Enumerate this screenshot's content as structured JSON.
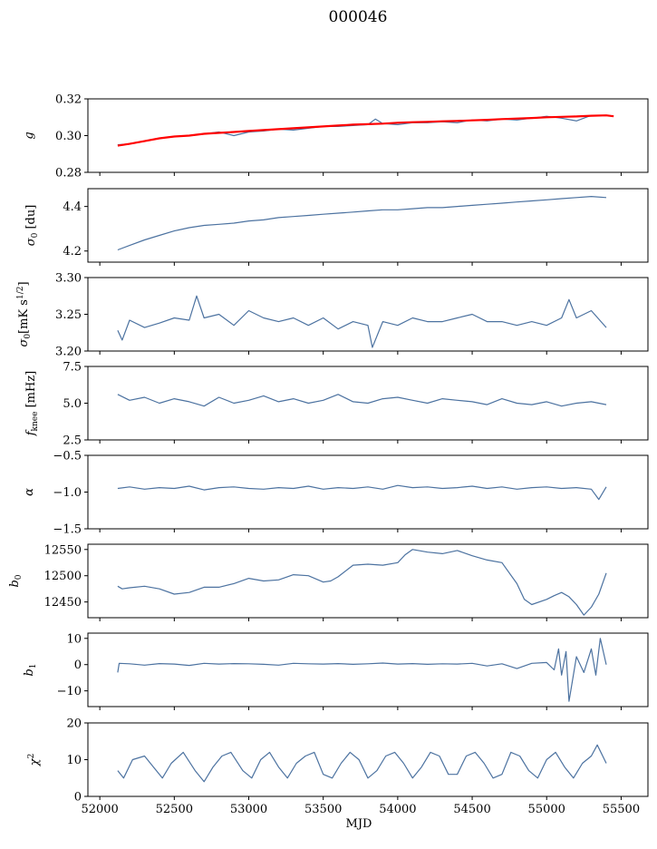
{
  "figure": {
    "title": "000046"
  },
  "chart_data": [
    {
      "type": "line",
      "ylabel": "g",
      "ylim": [
        0.28,
        0.32
      ],
      "yticks": [
        "0.28",
        "0.30",
        "0.32"
      ],
      "xlim": [
        51920,
        55680
      ],
      "series": [
        {
          "color": "#4c72a0",
          "x": [
            52120,
            52200,
            52300,
            52400,
            52500,
            52600,
            52700,
            52800,
            52900,
            53000,
            53100,
            53200,
            53300,
            53400,
            53500,
            53600,
            53700,
            53800,
            53850,
            53900,
            54000,
            54100,
            54200,
            54300,
            54400,
            54500,
            54600,
            54700,
            54800,
            54900,
            55000,
            55100,
            55200,
            55300,
            55400
          ],
          "y": [
            0.295,
            0.2955,
            0.297,
            0.2985,
            0.2995,
            0.3,
            0.301,
            0.302,
            0.3,
            0.302,
            0.3025,
            0.3035,
            0.303,
            0.304,
            0.305,
            0.305,
            0.3055,
            0.306,
            0.309,
            0.3065,
            0.306,
            0.307,
            0.307,
            0.3075,
            0.307,
            0.3085,
            0.308,
            0.309,
            0.3085,
            0.3095,
            0.3105,
            0.3095,
            0.308,
            0.311,
            0.311
          ]
        },
        {
          "color": "#ff0000",
          "x": [
            52120,
            52200,
            52300,
            52400,
            52500,
            52600,
            52700,
            52800,
            52900,
            53000,
            53100,
            53200,
            53300,
            53400,
            53500,
            53600,
            53700,
            53800,
            53900,
            54000,
            54100,
            54200,
            54300,
            54400,
            54500,
            54600,
            54700,
            54800,
            54900,
            55000,
            55100,
            55200,
            55300,
            55400,
            55450
          ],
          "y": [
            0.2945,
            0.2955,
            0.297,
            0.2985,
            0.2995,
            0.3,
            0.301,
            0.3015,
            0.302,
            0.3025,
            0.303,
            0.3035,
            0.304,
            0.3045,
            0.305,
            0.3055,
            0.306,
            0.3062,
            0.3065,
            0.307,
            0.3073,
            0.3075,
            0.3078,
            0.308,
            0.3083,
            0.3086,
            0.309,
            0.3093,
            0.3096,
            0.31,
            0.3102,
            0.3104,
            0.3108,
            0.311,
            0.3105
          ]
        }
      ]
    },
    {
      "type": "line",
      "ylabel": "σ0 [du]",
      "ylim": [
        4.15,
        4.48
      ],
      "yticks": [
        "4.2",
        "4.4"
      ],
      "xlim": [
        51920,
        55680
      ],
      "series": [
        {
          "color": "#4c72a0",
          "x": [
            52120,
            52200,
            52300,
            52400,
            52500,
            52600,
            52700,
            52800,
            52900,
            53000,
            53100,
            53200,
            53300,
            53400,
            53500,
            53600,
            53700,
            53800,
            53900,
            54000,
            54100,
            54200,
            54300,
            54400,
            54500,
            54600,
            54700,
            54800,
            54900,
            55000,
            55100,
            55200,
            55300,
            55400
          ],
          "y": [
            4.205,
            4.225,
            4.25,
            4.27,
            4.29,
            4.305,
            4.315,
            4.32,
            4.325,
            4.335,
            4.34,
            4.35,
            4.355,
            4.36,
            4.365,
            4.37,
            4.375,
            4.38,
            4.385,
            4.385,
            4.39,
            4.395,
            4.395,
            4.4,
            4.405,
            4.41,
            4.415,
            4.42,
            4.425,
            4.43,
            4.435,
            4.44,
            4.445,
            4.44
          ]
        }
      ]
    },
    {
      "type": "line",
      "ylabel": "σ0[mK s^1/2]",
      "ylim": [
        3.2,
        3.3
      ],
      "yticks": [
        "3.20",
        "3.25",
        "3.30"
      ],
      "xlim": [
        51920,
        55680
      ],
      "series": [
        {
          "color": "#4c72a0",
          "x": [
            52120,
            52150,
            52200,
            52300,
            52400,
            52500,
            52600,
            52650,
            52700,
            52800,
            52900,
            53000,
            53100,
            53200,
            53300,
            53400,
            53500,
            53600,
            53700,
            53800,
            53830,
            53900,
            54000,
            54100,
            54200,
            54300,
            54400,
            54500,
            54600,
            54700,
            54800,
            54900,
            55000,
            55100,
            55150,
            55200,
            55300,
            55400
          ],
          "y": [
            3.228,
            3.215,
            3.242,
            3.232,
            3.238,
            3.245,
            3.242,
            3.275,
            3.245,
            3.25,
            3.235,
            3.255,
            3.245,
            3.24,
            3.245,
            3.235,
            3.245,
            3.23,
            3.24,
            3.235,
            3.205,
            3.24,
            3.235,
            3.245,
            3.24,
            3.24,
            3.245,
            3.25,
            3.24,
            3.24,
            3.235,
            3.24,
            3.235,
            3.245,
            3.27,
            3.245,
            3.255,
            3.232
          ]
        }
      ]
    },
    {
      "type": "line",
      "ylabel": "fknee [mHz]",
      "ylim": [
        2.5,
        7.5
      ],
      "yticks": [
        "2.5",
        "5.0",
        "7.5"
      ],
      "xlim": [
        51920,
        55680
      ],
      "series": [
        {
          "color": "#4c72a0",
          "x": [
            52120,
            52200,
            52300,
            52400,
            52500,
            52600,
            52700,
            52800,
            52900,
            53000,
            53100,
            53200,
            53300,
            53400,
            53500,
            53600,
            53700,
            53800,
            53900,
            54000,
            54100,
            54200,
            54300,
            54400,
            54500,
            54600,
            54700,
            54800,
            54900,
            55000,
            55100,
            55200,
            55300,
            55400
          ],
          "y": [
            5.6,
            5.2,
            5.4,
            5.0,
            5.3,
            5.1,
            4.8,
            5.4,
            5.0,
            5.2,
            5.5,
            5.1,
            5.3,
            5.0,
            5.2,
            5.6,
            5.1,
            5.0,
            5.3,
            5.4,
            5.2,
            5.0,
            5.3,
            5.2,
            5.1,
            4.9,
            5.3,
            5.0,
            4.9,
            5.1,
            4.8,
            5.0,
            5.1,
            4.9
          ]
        }
      ]
    },
    {
      "type": "line",
      "ylabel": "α",
      "ylim": [
        -1.5,
        -0.5
      ],
      "yticks": [
        "−1.5",
        "−1.0",
        "−0.5"
      ],
      "xlim": [
        51920,
        55680
      ],
      "series": [
        {
          "color": "#4c72a0",
          "x": [
            52120,
            52200,
            52300,
            52400,
            52500,
            52600,
            52700,
            52800,
            52900,
            53000,
            53100,
            53200,
            53300,
            53400,
            53500,
            53600,
            53700,
            53800,
            53900,
            54000,
            54100,
            54200,
            54300,
            54400,
            54500,
            54600,
            54700,
            54800,
            54900,
            55000,
            55100,
            55200,
            55300,
            55350,
            55400
          ],
          "y": [
            -0.95,
            -0.93,
            -0.96,
            -0.94,
            -0.95,
            -0.92,
            -0.97,
            -0.94,
            -0.93,
            -0.95,
            -0.96,
            -0.94,
            -0.95,
            -0.92,
            -0.96,
            -0.94,
            -0.95,
            -0.93,
            -0.96,
            -0.91,
            -0.94,
            -0.93,
            -0.95,
            -0.94,
            -0.92,
            -0.95,
            -0.93,
            -0.96,
            -0.94,
            -0.93,
            -0.95,
            -0.94,
            -0.96,
            -1.1,
            -0.93
          ]
        }
      ]
    },
    {
      "type": "line",
      "ylabel": "b0",
      "ylim": [
        12420,
        12560
      ],
      "yticks": [
        "12450",
        "12500",
        "12550"
      ],
      "xlim": [
        51920,
        55680
      ],
      "series": [
        {
          "color": "#4c72a0",
          "x": [
            52120,
            52150,
            52200,
            52300,
            52400,
            52500,
            52600,
            52700,
            52800,
            52900,
            53000,
            53100,
            53200,
            53300,
            53400,
            53500,
            53550,
            53600,
            53700,
            53800,
            53900,
            54000,
            54050,
            54100,
            54200,
            54300,
            54400,
            54500,
            54600,
            54700,
            54800,
            54850,
            54900,
            55000,
            55050,
            55100,
            55150,
            55200,
            55250,
            55300,
            55350,
            55400
          ],
          "y": [
            12480,
            12475,
            12477,
            12480,
            12475,
            12465,
            12468,
            12478,
            12478,
            12485,
            12495,
            12490,
            12492,
            12502,
            12500,
            12488,
            12490,
            12498,
            12520,
            12522,
            12520,
            12525,
            12540,
            12550,
            12545,
            12542,
            12548,
            12538,
            12530,
            12525,
            12485,
            12455,
            12445,
            12455,
            12462,
            12468,
            12460,
            12445,
            12425,
            12440,
            12465,
            12505
          ]
        }
      ]
    },
    {
      "type": "line",
      "ylabel": "b1",
      "ylim": [
        -16,
        12
      ],
      "yticks": [
        "−10",
        "0",
        "10"
      ],
      "xlim": [
        51920,
        55680
      ],
      "series": [
        {
          "color": "#4c72a0",
          "x": [
            52120,
            52130,
            52200,
            52300,
            52400,
            52500,
            52600,
            52700,
            52800,
            52900,
            53000,
            53100,
            53200,
            53300,
            53400,
            53500,
            53600,
            53700,
            53800,
            53900,
            54000,
            54100,
            54200,
            54300,
            54400,
            54500,
            54600,
            54700,
            54800,
            54900,
            55000,
            55050,
            55080,
            55100,
            55130,
            55150,
            55200,
            55250,
            55300,
            55330,
            55360,
            55400
          ],
          "y": [
            -3,
            0.5,
            0.3,
            -0.2,
            0.4,
            0.2,
            -0.3,
            0.5,
            0.2,
            0.4,
            0.3,
            0.1,
            -0.2,
            0.5,
            0.3,
            0.2,
            0.4,
            0.1,
            0.3,
            0.6,
            0.2,
            0.4,
            0.1,
            0.3,
            0.2,
            0.5,
            -0.5,
            0.3,
            -1.5,
            0.5,
            0.8,
            -2,
            6,
            -4,
            5,
            -14,
            3,
            -3,
            6,
            -4,
            10,
            0
          ]
        }
      ]
    },
    {
      "type": "line",
      "xlabel": "MJD",
      "ylabel": "χ2",
      "ylim": [
        0,
        20
      ],
      "yticks": [
        "0",
        "10",
        "20"
      ],
      "xlim": [
        51920,
        55680
      ],
      "xticks": [
        "52000",
        "52500",
        "53000",
        "53500",
        "54000",
        "54500",
        "55000",
        "55500"
      ],
      "series": [
        {
          "color": "#4c72a0",
          "x": [
            52120,
            52160,
            52220,
            52300,
            52360,
            52420,
            52480,
            52560,
            52640,
            52700,
            52760,
            52820,
            52880,
            52960,
            53020,
            53080,
            53140,
            53200,
            53260,
            53320,
            53380,
            53440,
            53500,
            53560,
            53620,
            53680,
            53740,
            53800,
            53860,
            53920,
            53980,
            54040,
            54100,
            54160,
            54220,
            54280,
            54340,
            54400,
            54460,
            54520,
            54580,
            54640,
            54700,
            54760,
            54820,
            54880,
            54940,
            55000,
            55060,
            55120,
            55180,
            55240,
            55300,
            55340,
            55400
          ],
          "y": [
            7,
            5,
            10,
            11,
            8,
            5,
            9,
            12,
            7,
            4,
            8,
            11,
            12,
            7,
            5,
            10,
            12,
            8,
            5,
            9,
            11,
            12,
            6,
            5,
            9,
            12,
            10,
            5,
            7,
            11,
            12,
            9,
            5,
            8,
            12,
            11,
            6,
            6,
            11,
            12,
            9,
            5,
            6,
            12,
            11,
            7,
            5,
            10,
            12,
            8,
            5,
            9,
            11,
            14,
            9
          ]
        }
      ]
    }
  ]
}
